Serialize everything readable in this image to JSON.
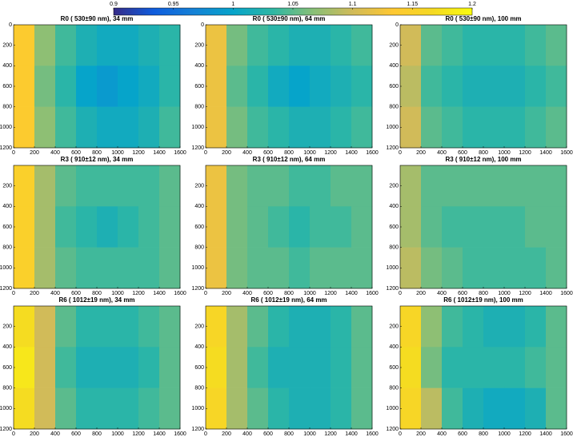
{
  "chart_data": [
    {
      "type": "colorbar",
      "clim": [
        0.9,
        1.2
      ],
      "ticks": [
        0.9,
        0.95,
        1,
        1.05,
        1.1,
        1.15,
        1.2
      ],
      "colormap": [
        "#352a87",
        "#0f5cdd",
        "#1481d6",
        "#06a4ca",
        "#2eb7a4",
        "#87bf77",
        "#d1bb59",
        "#fec832",
        "#f5d923",
        "#f9fb0e"
      ]
    },
    {
      "type": "heatmap",
      "title": "R0 ( 530±90 nm), 34 mm",
      "xlim": [
        0,
        1600
      ],
      "ylim": [
        0,
        1200
      ],
      "xticks": [
        0,
        200,
        400,
        600,
        800,
        1000,
        1200,
        1400,
        1600
      ],
      "yticks": [
        0,
        200,
        400,
        600,
        800,
        1000,
        1200
      ],
      "z": [
        [
          1.14,
          1.07,
          1.04,
          1.02,
          1.01,
          1.01,
          1.02,
          1.03
        ],
        [
          1.14,
          1.06,
          1.03,
          1.0,
          0.99,
          1.0,
          1.01,
          1.03
        ],
        [
          1.14,
          1.07,
          1.04,
          1.02,
          1.01,
          1.01,
          1.02,
          1.04
        ]
      ]
    },
    {
      "type": "heatmap",
      "title": "R0 ( 530±90 nm), 64 mm",
      "xlim": [
        0,
        1600
      ],
      "ylim": [
        0,
        1200
      ],
      "xticks": [
        0,
        200,
        400,
        600,
        800,
        1000,
        1200,
        1400,
        1600
      ],
      "yticks": [
        0,
        200,
        400,
        600,
        800,
        1000,
        1200
      ],
      "z": [
        [
          1.12,
          1.06,
          1.04,
          1.03,
          1.02,
          1.02,
          1.03,
          1.04
        ],
        [
          1.12,
          1.05,
          1.03,
          1.01,
          1.0,
          1.01,
          1.02,
          1.03
        ],
        [
          1.12,
          1.06,
          1.04,
          1.03,
          1.02,
          1.02,
          1.03,
          1.04
        ]
      ]
    },
    {
      "type": "heatmap",
      "title": "R0 ( 530±90 nm), 100 mm",
      "xlim": [
        0,
        1600
      ],
      "ylim": [
        0,
        1200
      ],
      "xticks": [
        0,
        200,
        400,
        600,
        800,
        1000,
        1200,
        1400,
        1600
      ],
      "yticks": [
        0,
        200,
        400,
        600,
        800,
        1000,
        1200
      ],
      "z": [
        [
          1.1,
          1.05,
          1.04,
          1.03,
          1.03,
          1.03,
          1.04,
          1.05
        ],
        [
          1.09,
          1.04,
          1.03,
          1.02,
          1.02,
          1.02,
          1.03,
          1.04
        ],
        [
          1.1,
          1.05,
          1.04,
          1.03,
          1.03,
          1.03,
          1.04,
          1.05
        ]
      ]
    },
    {
      "type": "heatmap",
      "title": "R3 ( 910±12 nm), 34 mm",
      "xlim": [
        0,
        1600
      ],
      "ylim": [
        0,
        1200
      ],
      "xticks": [
        0,
        200,
        400,
        600,
        800,
        1000,
        1200,
        1400,
        1600
      ],
      "yticks": [
        200,
        400,
        600,
        800,
        1000,
        1200
      ],
      "z": [
        [
          1.15,
          1.08,
          1.05,
          1.04,
          1.04,
          1.04,
          1.04,
          1.05
        ],
        [
          1.15,
          1.08,
          1.04,
          1.03,
          1.02,
          1.03,
          1.04,
          1.05
        ],
        [
          1.15,
          1.08,
          1.05,
          1.04,
          1.04,
          1.04,
          1.04,
          1.05
        ]
      ]
    },
    {
      "type": "heatmap",
      "title": "R3 ( 910±12 nm), 64 mm",
      "xlim": [
        0,
        1600
      ],
      "ylim": [
        0,
        1200
      ],
      "xticks": [
        0,
        200,
        400,
        600,
        800,
        1000,
        1200,
        1400,
        1600
      ],
      "yticks": [
        200,
        400,
        600,
        800,
        1000,
        1200
      ],
      "z": [
        [
          1.12,
          1.06,
          1.05,
          1.05,
          1.04,
          1.04,
          1.05,
          1.05
        ],
        [
          1.12,
          1.06,
          1.05,
          1.04,
          1.03,
          1.04,
          1.04,
          1.05
        ],
        [
          1.12,
          1.06,
          1.05,
          1.05,
          1.04,
          1.05,
          1.05,
          1.05
        ]
      ]
    },
    {
      "type": "heatmap",
      "title": "R3 ( 910±12 nm), 100 mm",
      "xlim": [
        0,
        1600
      ],
      "ylim": [
        0,
        1200
      ],
      "xticks": [
        0,
        200,
        400,
        600,
        800,
        1000,
        1200,
        1400,
        1600
      ],
      "yticks": [
        200,
        400,
        600,
        800,
        1000,
        1200
      ],
      "z": [
        [
          1.08,
          1.05,
          1.05,
          1.05,
          1.05,
          1.05,
          1.05,
          1.05
        ],
        [
          1.08,
          1.05,
          1.04,
          1.04,
          1.04,
          1.04,
          1.05,
          1.05
        ],
        [
          1.09,
          1.06,
          1.05,
          1.04,
          1.04,
          1.04,
          1.04,
          1.05
        ]
      ]
    },
    {
      "type": "heatmap",
      "title": "R6 ( 1012±19 nm), 34 mm",
      "xlim": [
        0,
        1600
      ],
      "ylim": [
        0,
        1200
      ],
      "xticks": [
        0,
        200,
        400,
        600,
        800,
        1000,
        1200,
        1400,
        1600
      ],
      "yticks": [
        200,
        400,
        600,
        800,
        1000,
        1200
      ],
      "z": [
        [
          1.17,
          1.1,
          1.05,
          1.03,
          1.03,
          1.03,
          1.04,
          1.05
        ],
        [
          1.18,
          1.1,
          1.04,
          1.02,
          1.02,
          1.02,
          1.03,
          1.05
        ],
        [
          1.17,
          1.1,
          1.05,
          1.03,
          1.03,
          1.03,
          1.04,
          1.05
        ]
      ]
    },
    {
      "type": "heatmap",
      "title": "R6 ( 1012±19 nm), 64 mm",
      "xlim": [
        0,
        1600
      ],
      "ylim": [
        0,
        1200
      ],
      "xticks": [
        0,
        200,
        400,
        600,
        800,
        1000,
        1200,
        1400,
        1600
      ],
      "yticks": [
        200,
        400,
        600,
        800,
        1000,
        1200
      ],
      "z": [
        [
          1.16,
          1.08,
          1.05,
          1.03,
          1.02,
          1.02,
          1.03,
          1.05
        ],
        [
          1.17,
          1.08,
          1.04,
          1.02,
          1.02,
          1.02,
          1.03,
          1.05
        ],
        [
          1.16,
          1.08,
          1.05,
          1.03,
          1.02,
          1.02,
          1.03,
          1.05
        ]
      ]
    },
    {
      "type": "heatmap",
      "title": "R6 ( 1012±19 nm), 100 mm",
      "xlim": [
        0,
        1600
      ],
      "ylim": [
        0,
        1200
      ],
      "xticks": [
        0,
        200,
        400,
        600,
        800,
        1000,
        1200,
        1400,
        1600
      ],
      "yticks": [
        200,
        400,
        600,
        800,
        1000,
        1200
      ],
      "z": [
        [
          1.16,
          1.07,
          1.04,
          1.03,
          1.02,
          1.02,
          1.03,
          1.05
        ],
        [
          1.17,
          1.06,
          1.03,
          1.03,
          1.03,
          1.03,
          1.04,
          1.05
        ],
        [
          1.16,
          1.09,
          1.04,
          1.02,
          1.01,
          1.01,
          1.02,
          1.05
        ]
      ]
    }
  ]
}
